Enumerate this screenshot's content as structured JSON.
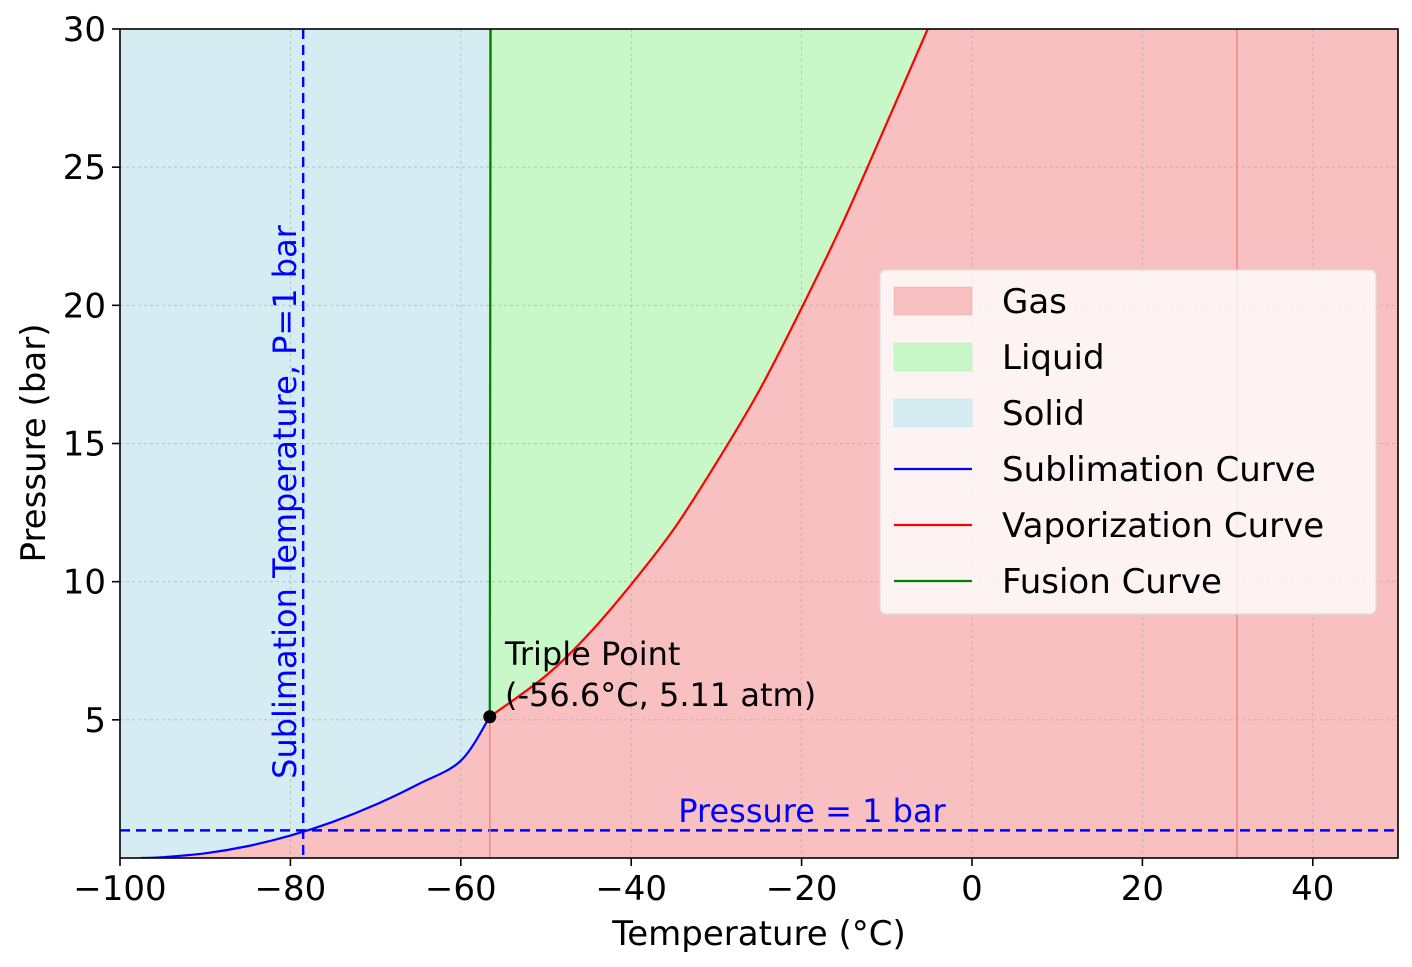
{
  "chart_data": {
    "type": "line",
    "title": "",
    "xlabel": "Temperature (°C)",
    "ylabel": "Pressure (bar)",
    "xlim": [
      -100,
      50
    ],
    "ylim": [
      0,
      30
    ],
    "xticks": [
      -100,
      -80,
      -60,
      -40,
      -20,
      0,
      20,
      40
    ],
    "xtick_labels": [
      "−100",
      "−80",
      "−60",
      "−40",
      "−20",
      "0",
      "20",
      "40"
    ],
    "yticks": [
      5,
      10,
      15,
      20,
      25,
      30
    ],
    "ytick_labels": [
      "5",
      "10",
      "15",
      "20",
      "25",
      "30"
    ],
    "grid": true,
    "legend_position": "right",
    "regions": [
      {
        "name": "Gas",
        "color": "#f08080"
      },
      {
        "name": "Liquid",
        "color": "#90ee90"
      },
      {
        "name": "Solid",
        "color": "#add8e6"
      }
    ],
    "series": [
      {
        "name": "Sublimation Curve",
        "color": "#0000ff",
        "x": [
          -97.5,
          -95,
          -90,
          -85,
          -80,
          -75,
          -70,
          -65,
          -60,
          -56.6
        ],
        "y": [
          0.0,
          0.03,
          0.17,
          0.43,
          0.81,
          1.31,
          1.93,
          2.67,
          3.52,
          5.11
        ]
      },
      {
        "name": "Vaporization Curve",
        "color": "#ff0000",
        "x": [
          -56.6,
          -50,
          -45,
          -40,
          -35,
          -30,
          -25,
          -20,
          -15,
          -10,
          -5.2
        ],
        "y": [
          5.11,
          6.6,
          8.1,
          9.9,
          11.9,
          14.3,
          16.9,
          19.9,
          23.1,
          26.6,
          30.0
        ]
      },
      {
        "name": "Fusion Curve",
        "color": "#008000",
        "x": [
          -56.6,
          -56.5
        ],
        "y": [
          5.11,
          30.0
        ]
      }
    ],
    "reference_lines": [
      {
        "orientation": "horizontal",
        "value": 1,
        "label": "Pressure = 1 bar",
        "color": "#0000ff",
        "style": "dashed"
      },
      {
        "orientation": "vertical",
        "value": -78.5,
        "label": "Sublimation Temperature, P=1 bar",
        "color": "#0000ff",
        "style": "dashed"
      },
      {
        "orientation": "vertical",
        "value": -56.6,
        "label": "",
        "color": "#f08080",
        "style": "solid"
      },
      {
        "orientation": "vertical",
        "value": 31.1,
        "label": "",
        "color": "#f08080",
        "style": "solid"
      }
    ],
    "annotations": [
      {
        "x": -56.6,
        "y": 5.11,
        "line1": "Triple Point",
        "line2": "(-56.6°C, 5.11 atm)"
      }
    ]
  }
}
